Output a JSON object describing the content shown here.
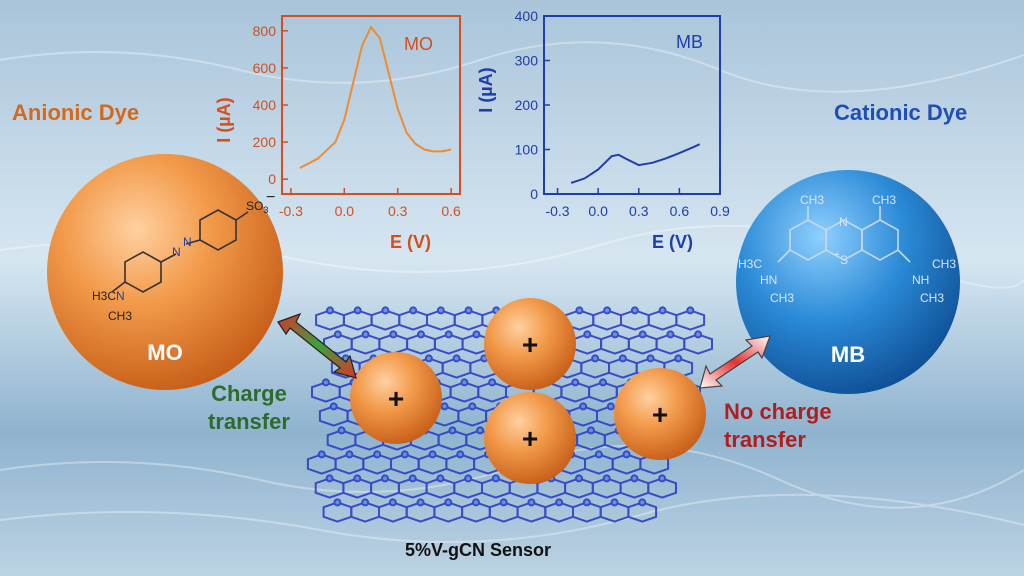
{
  "labels": {
    "anionic": "Anionic Dye",
    "cationic": "Cationic Dye",
    "charge_transfer": [
      "Charge",
      "transfer"
    ],
    "no_charge_transfer": [
      "No charge",
      "transfer"
    ],
    "sensor": "5%V-gCN Sensor",
    "mo_sphere": "MO",
    "mb_sphere": "MB",
    "plus": "+"
  },
  "molecules": {
    "mo": {
      "so3": "SO",
      "sub3": "3",
      "neg": "−",
      "h3c": "H3C",
      "n": "N",
      "ch3": "CH3",
      "azo": "N",
      "azo2": "N"
    },
    "mb": {
      "ch3a": "CH3",
      "ch3b": "CH3",
      "n_top": "N",
      "s": "S",
      "plus": "+",
      "left_group": "H3C",
      "left_nh": "HN",
      "left_ch3": "CH3",
      "right_ch3": "CH3",
      "right_nh": "NH",
      "right_ch3b": "CH3"
    }
  },
  "colors": {
    "mo": "#e8802e",
    "mb": "#2a7fd0",
    "mo_axis": "#d2501e",
    "mb_axis": "#1f3fa8"
  },
  "chart_data": [
    {
      "type": "line",
      "series": [
        {
          "name": "MO",
          "x": [
            -0.25,
            -0.15,
            -0.05,
            0.0,
            0.05,
            0.1,
            0.15,
            0.2,
            0.25,
            0.3,
            0.35,
            0.4,
            0.45,
            0.5,
            0.55,
            0.6
          ],
          "y": [
            60,
            110,
            200,
            320,
            520,
            720,
            820,
            760,
            570,
            380,
            250,
            190,
            160,
            150,
            150,
            160
          ]
        }
      ],
      "xlabel": "E (V)",
      "ylabel": "I (µA)",
      "xticks": [
        "-0.3",
        "0.0",
        "0.3",
        "0.6"
      ],
      "yticks": [
        "0",
        "200",
        "400",
        "600",
        "800"
      ],
      "xlim": [
        -0.35,
        0.65
      ],
      "ylim": [
        -80,
        880
      ]
    },
    {
      "type": "line",
      "series": [
        {
          "name": "MB",
          "x": [
            -0.2,
            -0.1,
            0.0,
            0.05,
            0.1,
            0.15,
            0.2,
            0.3,
            0.4,
            0.5,
            0.6,
            0.7,
            0.75
          ],
          "y": [
            25,
            35,
            55,
            70,
            85,
            88,
            80,
            65,
            70,
            80,
            92,
            105,
            112
          ]
        }
      ],
      "xlabel": "E (V)",
      "ylabel": "I (µA)",
      "xticks": [
        "-0.3",
        "0.0",
        "0.3",
        "0.6",
        "0.9"
      ],
      "yticks": [
        "0",
        "100",
        "200",
        "300",
        "400"
      ],
      "xlim": [
        -0.4,
        0.9
      ],
      "ylim": [
        0,
        400
      ]
    }
  ]
}
